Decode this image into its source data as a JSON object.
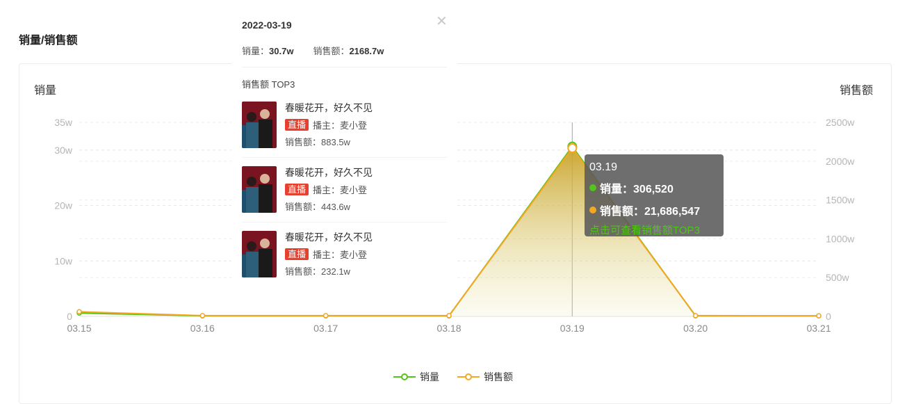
{
  "page": {
    "title": "销量/销售额"
  },
  "chart_data": {
    "type": "area",
    "categories": [
      "03.15",
      "03.16",
      "03.17",
      "03.18",
      "03.19",
      "03.20",
      "03.21"
    ],
    "left_axis": {
      "label": "销量",
      "ylim": [
        0,
        35
      ],
      "ticks": [
        0,
        10,
        20,
        30,
        35
      ],
      "tick_labels": [
        "0",
        "10w",
        "20w",
        "30w",
        "35w"
      ]
    },
    "right_axis": {
      "label": "销售额",
      "ylim": [
        0,
        2500
      ],
      "ticks": [
        0,
        500,
        1000,
        1500,
        2000,
        2500
      ],
      "tick_labels": [
        "0",
        "500w",
        "1000w",
        "1500w",
        "2000w",
        "2500w"
      ]
    },
    "series": [
      {
        "name": "销量",
        "axis": "left",
        "color": "#52c41a",
        "values": [
          0.6,
          0.1,
          0.1,
          0.1,
          30.65,
          0.1,
          0.1
        ]
      },
      {
        "name": "销售额",
        "axis": "right",
        "color": "#f5a623",
        "values": [
          60,
          10,
          10,
          10,
          2168.65,
          10,
          8
        ]
      }
    ],
    "highlight_index": 4,
    "legend_position": "bottom-center",
    "grid": true
  },
  "tooltip": {
    "date": "03.19",
    "sales_label": "销量：",
    "sales_value": "306,520",
    "revenue_label": "销售额：",
    "revenue_value": "21,686,547",
    "link": "点击可查看销售额TOP3"
  },
  "popup": {
    "date": "2022-03-19",
    "sales_label": "销量：",
    "sales_value": "30.7w",
    "revenue_label": "销售额：",
    "revenue_value": "2168.7w",
    "section_title": "销售额 TOP3",
    "close_icon": "close-icon",
    "items": [
      {
        "title": "春暖花开，好久不见",
        "badge": "直播",
        "host_label": "播主：",
        "host": "麦小登",
        "sales_label": "销售额：",
        "sales": "883.5w"
      },
      {
        "title": "春暖花开，好久不见",
        "badge": "直播",
        "host_label": "播主：",
        "host": "麦小登",
        "sales_label": "销售额：",
        "sales": "443.6w"
      },
      {
        "title": "春暖花开，好久不见",
        "badge": "直播",
        "host_label": "播主：",
        "host": "麦小登",
        "sales_label": "销售额：",
        "sales": "232.1w"
      }
    ]
  },
  "colors": {
    "sales": "#52c41a",
    "revenue": "#f5a623",
    "badge": "#e8402e"
  }
}
